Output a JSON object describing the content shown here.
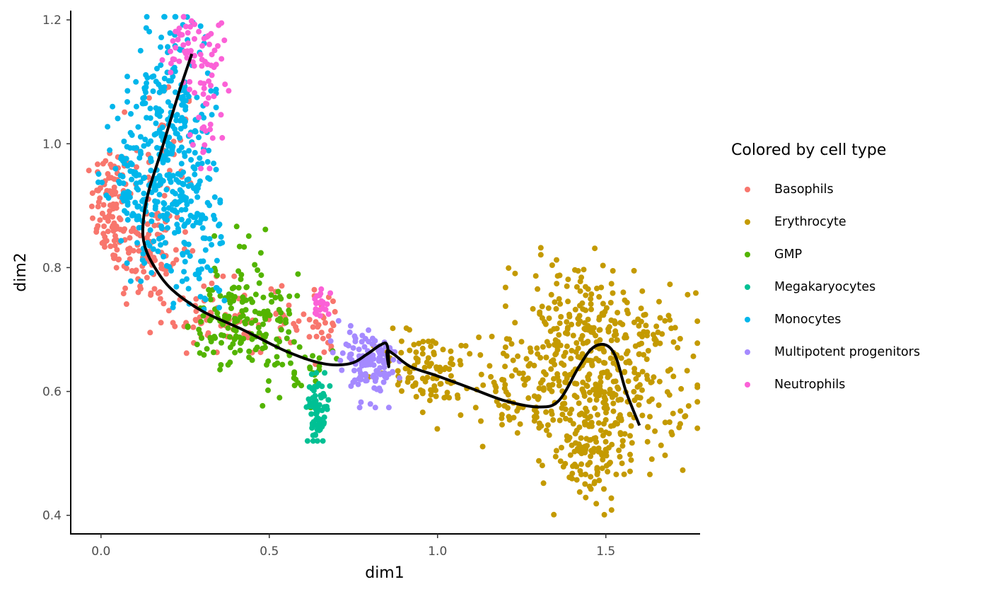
{
  "chart_data": {
    "type": "scatter",
    "xlabel": "dim1",
    "ylabel": "dim2",
    "xlim": [
      -0.09,
      1.78
    ],
    "ylim": [
      0.37,
      1.215
    ],
    "x_ticks": [
      0.0,
      0.5,
      1.0,
      1.5
    ],
    "x_tick_labels": [
      "0.0",
      "0.5",
      "1.0",
      "1.5"
    ],
    "y_ticks": [
      0.4,
      0.6,
      0.8,
      1.0,
      1.2
    ],
    "y_tick_labels": [
      "0.4",
      "0.6",
      "0.8",
      "1.0",
      "1.2"
    ],
    "grid": false,
    "legend": {
      "title": "Colored by cell type",
      "position": "right",
      "entries": [
        "Basophils",
        "Erythrocyte",
        "GMP",
        "Megakaryocytes",
        "Monocytes",
        "Multipotent progenitors",
        "Neutrophils"
      ]
    },
    "series": [
      {
        "name": "Basophils",
        "color": "#F8766D",
        "n_points": 330,
        "regions": [
          {
            "cx": 0.03,
            "cy": 0.9,
            "sx": 0.03,
            "sy": 0.05,
            "share": 0.28
          },
          {
            "cx": 0.14,
            "cy": 0.82,
            "sx": 0.06,
            "sy": 0.045,
            "share": 0.26
          },
          {
            "cx": 0.18,
            "cy": 0.97,
            "sx": 0.05,
            "sy": 0.08,
            "share": 0.12
          },
          {
            "cx": 0.3,
            "cy": 0.72,
            "sx": 0.07,
            "sy": 0.03,
            "share": 0.16
          },
          {
            "cx": 0.52,
            "cy": 0.71,
            "sx": 0.07,
            "sy": 0.03,
            "share": 0.1
          },
          {
            "cx": 0.66,
            "cy": 0.71,
            "sx": 0.03,
            "sy": 0.03,
            "share": 0.08
          }
        ]
      },
      {
        "name": "Erythrocyte",
        "color": "#C49A00",
        "n_points": 740,
        "regions": [
          {
            "cx": 1.53,
            "cy": 0.62,
            "sx": 0.11,
            "sy": 0.07,
            "share": 0.42
          },
          {
            "cx": 1.4,
            "cy": 0.7,
            "sx": 0.09,
            "sy": 0.06,
            "share": 0.18
          },
          {
            "cx": 1.44,
            "cy": 0.5,
            "sx": 0.06,
            "sy": 0.045,
            "share": 0.14
          },
          {
            "cx": 1.22,
            "cy": 0.61,
            "sx": 0.12,
            "sy": 0.045,
            "share": 0.16
          },
          {
            "cx": 0.95,
            "cy": 0.64,
            "sx": 0.07,
            "sy": 0.03,
            "share": 0.1
          }
        ]
      },
      {
        "name": "GMP",
        "color": "#53B400",
        "n_points": 200,
        "regions": [
          {
            "cx": 0.39,
            "cy": 0.71,
            "sx": 0.06,
            "sy": 0.035,
            "share": 0.45
          },
          {
            "cx": 0.5,
            "cy": 0.72,
            "sx": 0.06,
            "sy": 0.035,
            "share": 0.3
          },
          {
            "cx": 0.41,
            "cy": 0.8,
            "sx": 0.04,
            "sy": 0.04,
            "share": 0.1
          },
          {
            "cx": 0.59,
            "cy": 0.64,
            "sx": 0.05,
            "sy": 0.03,
            "share": 0.15
          }
        ]
      },
      {
        "name": "Megakaryocytes",
        "color": "#00C094",
        "n_points": 70,
        "regions": [
          {
            "cx": 0.645,
            "cy": 0.575,
            "sx": 0.018,
            "sy": 0.025,
            "share": 0.8
          },
          {
            "cx": 0.64,
            "cy": 0.545,
            "sx": 0.012,
            "sy": 0.01,
            "share": 0.2
          }
        ]
      },
      {
        "name": "Monocytes",
        "color": "#00B6EB",
        "n_points": 470,
        "regions": [
          {
            "cx": 0.21,
            "cy": 1.06,
            "sx": 0.06,
            "sy": 0.08,
            "share": 0.4
          },
          {
            "cx": 0.2,
            "cy": 0.91,
            "sx": 0.07,
            "sy": 0.06,
            "share": 0.35
          },
          {
            "cx": 0.08,
            "cy": 0.95,
            "sx": 0.04,
            "sy": 0.05,
            "share": 0.13
          },
          {
            "cx": 0.28,
            "cy": 0.82,
            "sx": 0.05,
            "sy": 0.05,
            "share": 0.12
          }
        ]
      },
      {
        "name": "Multipotent progenitors",
        "color": "#A58AFF",
        "n_points": 120,
        "regions": [
          {
            "cx": 0.81,
            "cy": 0.64,
            "sx": 0.035,
            "sy": 0.03,
            "share": 0.85
          },
          {
            "cx": 0.74,
            "cy": 0.67,
            "sx": 0.03,
            "sy": 0.02,
            "share": 0.15
          }
        ]
      },
      {
        "name": "Neutrophils",
        "color": "#FB61D7",
        "n_points": 110,
        "regions": [
          {
            "cx": 0.27,
            "cy": 1.16,
            "sx": 0.04,
            "sy": 0.03,
            "share": 0.45
          },
          {
            "cx": 0.32,
            "cy": 1.07,
            "sx": 0.03,
            "sy": 0.05,
            "share": 0.35
          },
          {
            "cx": 0.655,
            "cy": 0.745,
            "sx": 0.012,
            "sy": 0.012,
            "share": 0.2
          }
        ]
      }
    ],
    "trajectory": {
      "color": "#000000",
      "x": [
        0.27,
        0.23,
        0.18,
        0.14,
        0.125,
        0.13,
        0.16,
        0.21,
        0.3,
        0.42,
        0.55,
        0.66,
        0.74,
        0.79,
        0.83,
        0.85,
        0.855,
        0.85,
        0.87,
        0.92,
        1.0,
        1.1,
        1.2,
        1.3,
        1.36,
        1.42,
        1.46,
        1.5,
        1.53,
        1.56,
        1.6
      ],
      "y": [
        1.145,
        1.08,
        0.99,
        0.92,
        0.87,
        0.835,
        0.8,
        0.765,
        0.73,
        0.7,
        0.665,
        0.645,
        0.645,
        0.66,
        0.675,
        0.675,
        0.64,
        0.665,
        0.66,
        0.64,
        0.625,
        0.605,
        0.585,
        0.575,
        0.585,
        0.64,
        0.67,
        0.675,
        0.655,
        0.6,
        0.545
      ]
    }
  }
}
